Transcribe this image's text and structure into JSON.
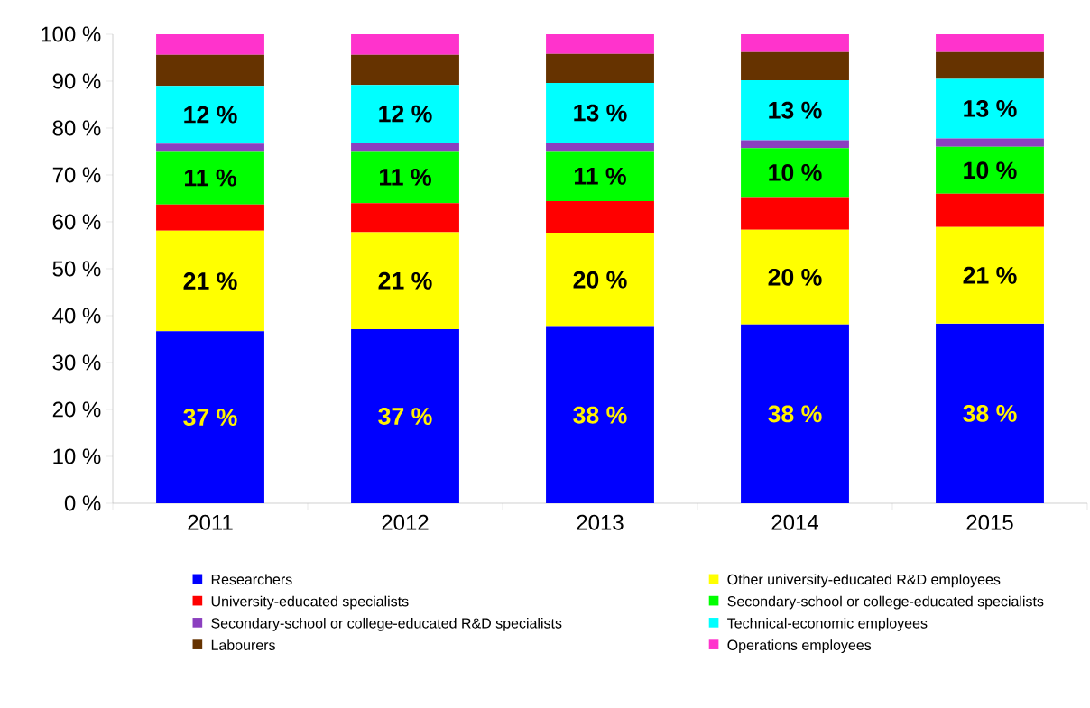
{
  "chart_data": {
    "type": "bar",
    "stacked": true,
    "categories": [
      "2011",
      "2012",
      "2013",
      "2014",
      "2015"
    ],
    "ylim": [
      0,
      100
    ],
    "yticks": [
      {
        "value": 0,
        "label": "0 %"
      },
      {
        "value": 10,
        "label": "10 %"
      },
      {
        "value": 20,
        "label": "20 %"
      },
      {
        "value": 30,
        "label": "30 %"
      },
      {
        "value": 40,
        "label": "40 %"
      },
      {
        "value": 50,
        "label": "50 %"
      },
      {
        "value": 60,
        "label": "60 %"
      },
      {
        "value": 70,
        "label": "70 %"
      },
      {
        "value": 80,
        "label": "80 %"
      },
      {
        "value": 90,
        "label": "90 %"
      },
      {
        "value": 100,
        "label": "100 %"
      }
    ],
    "grid": false,
    "legend": "bottom",
    "series": [
      {
        "name": "Researchers",
        "color": "#0000ff",
        "values": [
          36.7,
          37.1,
          37.6,
          38.1,
          38.3
        ],
        "value_labels": [
          "37 %",
          "37 %",
          "38 %",
          "38 %",
          "38 %"
        ]
      },
      {
        "name": "Other university-educated R&D employees",
        "color": "#ffff00",
        "values": [
          21.4,
          20.7,
          20.1,
          20.2,
          20.6
        ],
        "value_labels": [
          "21 %",
          "21 %",
          "20 %",
          "20 %",
          "21 %"
        ]
      },
      {
        "name": "University-educated specialists",
        "color": "#ff0000",
        "values": [
          5.6,
          6.2,
          6.7,
          7.0,
          7.1
        ]
      },
      {
        "name": "Secondary-school or college-educated specialists",
        "color": "#00ff00",
        "values": [
          11.4,
          11.1,
          10.7,
          10.4,
          10.0
        ],
        "value_labels": [
          "11 %",
          "11 %",
          "11 %",
          "10 %",
          "10 %"
        ]
      },
      {
        "name": "Secondary-school or college-educated R&D specialists",
        "color": "#8b3fbf",
        "values": [
          1.6,
          1.8,
          1.8,
          1.7,
          1.8
        ]
      },
      {
        "name": "Technical-economic employees",
        "color": "#00ffff",
        "values": [
          12.3,
          12.3,
          12.7,
          12.8,
          12.7
        ],
        "value_labels": [
          "12 %",
          "12 %",
          "13 %",
          "13 %",
          "13 %"
        ]
      },
      {
        "name": "Labourers",
        "color": "#663300",
        "values": [
          6.6,
          6.4,
          6.2,
          6.0,
          5.7
        ]
      },
      {
        "name": "Operations employees",
        "color": "#ff33cc",
        "values": [
          4.4,
          4.4,
          4.2,
          3.8,
          3.8
        ]
      }
    ]
  }
}
